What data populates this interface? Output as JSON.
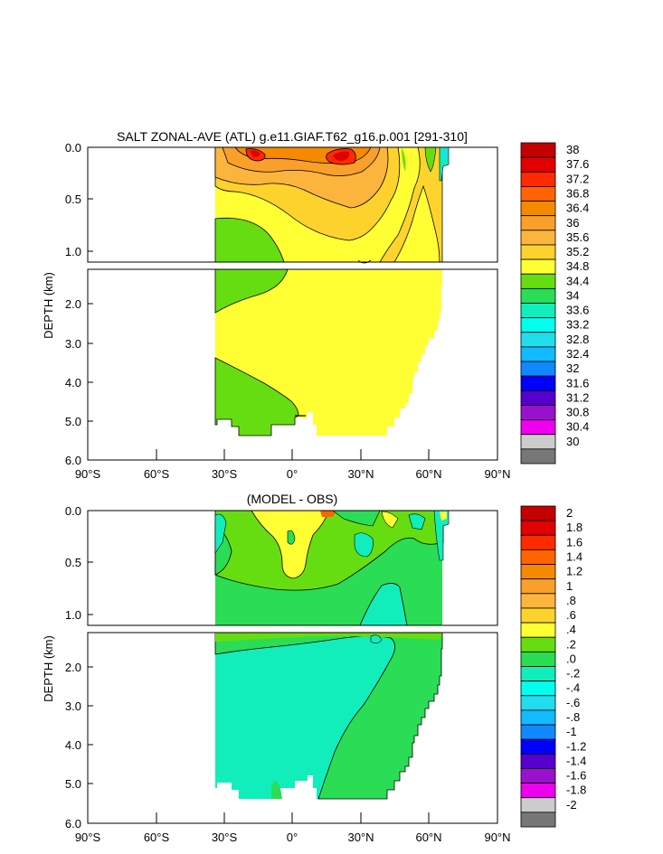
{
  "chart_data": [
    {
      "type": "heatmap",
      "title": "SALT ZONAL-AVE (ATL) g.e11.GIAF.T62_g16.p.001 [291-310]",
      "ylabel": "DEPTH (km)",
      "x_ticks": [
        "90°S",
        "60°S",
        "30°S",
        "0°",
        "30°N",
        "60°N",
        "90°N"
      ],
      "x_values": [
        -90,
        -60,
        -30,
        0,
        30,
        60,
        90
      ],
      "xlim": [
        -90,
        90
      ],
      "upper_y_ticks": [
        "0.0",
        "0.5",
        "1.0"
      ],
      "upper_y_values": [
        0.0,
        0.5,
        1.0
      ],
      "upper_ylim": [
        0,
        1.1
      ],
      "lower_y_ticks": [
        "2.0",
        "3.0",
        "4.0",
        "5.0",
        "6.0"
      ],
      "lower_y_values": [
        2,
        3,
        4,
        5,
        6
      ],
      "lower_ylim": [
        1.1,
        6.0
      ],
      "colorbar_labels": [
        "38",
        "37.6",
        "37.2",
        "36.8",
        "36.4",
        "36",
        "35.6",
        "35.2",
        "34.8",
        "34.4",
        "34",
        "33.6",
        "33.2",
        "32.8",
        "32.4",
        "32",
        "31.6",
        "31.2",
        "30.8",
        "30.4",
        "30"
      ],
      "colorbar_colors": [
        "#c40000",
        "#e20000",
        "#ff2a00",
        "#ff6400",
        "#f58a00",
        "#f99f2b",
        "#fcb53c",
        "#fdd22d",
        "#ffff33",
        "#66dd11",
        "#2add55",
        "#11eebb",
        "#00ffee",
        "#22ddee",
        "#11bbff",
        "#1188ff",
        "#0000ff",
        "#5500cc",
        "#9911cc",
        "#ee00ee",
        "#cccccc",
        "#777777"
      ]
    },
    {
      "type": "heatmap",
      "title": "(MODEL - OBS)",
      "ylabel": "DEPTH (km)",
      "x_ticks": [
        "90°S",
        "60°S",
        "30°S",
        "0°",
        "30°N",
        "60°N",
        "90°N"
      ],
      "x_values": [
        -90,
        -60,
        -30,
        0,
        30,
        60,
        90
      ],
      "xlim": [
        -90,
        90
      ],
      "upper_y_ticks": [
        "0.0",
        "0.5",
        "1.0"
      ],
      "upper_y_values": [
        0.0,
        0.5,
        1.0
      ],
      "upper_ylim": [
        0,
        1.1
      ],
      "lower_y_ticks": [
        "2.0",
        "3.0",
        "4.0",
        "5.0",
        "6.0"
      ],
      "lower_y_values": [
        2,
        3,
        4,
        5,
        6
      ],
      "lower_ylim": [
        1.1,
        6.0
      ],
      "colorbar_labels": [
        "2",
        "1.8",
        "1.6",
        "1.4",
        "1.2",
        "1",
        ".8",
        ".6",
        ".4",
        ".2",
        ".0",
        "-.2",
        "-.4",
        "-.6",
        "-.8",
        "-1",
        "-1.2",
        "-1.4",
        "-1.6",
        "-1.8",
        "-2"
      ],
      "colorbar_colors": [
        "#c40000",
        "#e20000",
        "#ff2a00",
        "#ff6400",
        "#f58a00",
        "#f99f2b",
        "#fcb53c",
        "#fdd22d",
        "#ffff33",
        "#66dd11",
        "#2add55",
        "#11eebb",
        "#00ffee",
        "#22ddee",
        "#11bbff",
        "#1188ff",
        "#0000ff",
        "#5500cc",
        "#9911cc",
        "#ee00ee",
        "#cccccc",
        "#777777"
      ]
    }
  ]
}
